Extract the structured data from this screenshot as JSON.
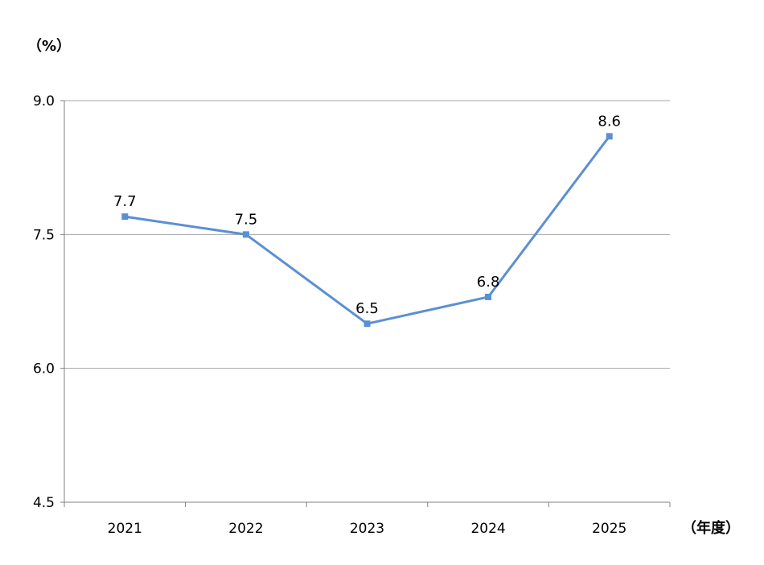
{
  "chart_data": {
    "type": "line",
    "categories": [
      "2021",
      "2022",
      "2023",
      "2024",
      "2025"
    ],
    "series": [
      {
        "values": [
          7.7,
          7.5,
          6.5,
          6.8,
          8.6
        ]
      }
    ],
    "data_labels": [
      "7.7",
      "7.5",
      "6.5",
      "6.8",
      "8.6"
    ],
    "y_ticks": [
      "9.0",
      "7.5",
      "6.0",
      "4.5"
    ],
    "ylim": [
      4.5,
      9.0
    ],
    "ylabel": "（%）",
    "xlabel": "（年度）",
    "grid": true,
    "legend": "none",
    "colors": {
      "line": "#5B8FD4",
      "grid": "#A6A6A6",
      "axis": "#808080"
    }
  }
}
